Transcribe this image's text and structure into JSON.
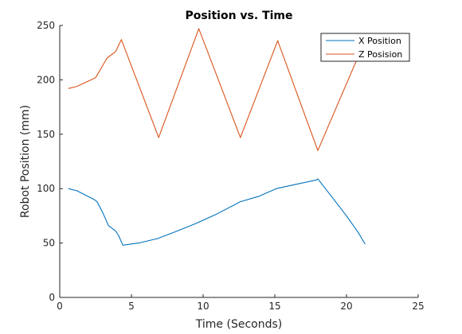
{
  "chart_data": {
    "type": "line",
    "title": "Position vs. Time",
    "xlabel": "Time (Seconds)",
    "ylabel": "Robot Position (mm)",
    "xlim": [
      0,
      25
    ],
    "ylim": [
      0,
      250
    ],
    "xticks": [
      0,
      5,
      10,
      15,
      20,
      25
    ],
    "yticks": [
      0,
      50,
      100,
      150,
      200,
      250
    ],
    "grid": false,
    "legend_position": "top-right",
    "series": [
      {
        "name": "X Position",
        "color": "#0072BD",
        "x": [
          0.6,
          1.2,
          2.4,
          2.6,
          3.0,
          3.4,
          3.9,
          4.1,
          4.4,
          5.5,
          6.8,
          8.0,
          9.5,
          11.0,
          12.6,
          13.9,
          15.1,
          16.5,
          17.9,
          18.0,
          19.0,
          20.0,
          20.8,
          21.3
        ],
        "y": [
          100,
          98,
          90,
          88,
          78,
          66,
          61,
          57,
          48,
          50,
          54,
          60,
          68,
          77,
          88,
          93,
          100,
          104,
          108,
          109,
          92,
          75,
          60,
          49
        ]
      },
      {
        "name": "Z Posision",
        "color": "#D95319",
        "x": [
          0.6,
          1.2,
          2.5,
          3.3,
          3.9,
          4.3,
          6.9,
          9.7,
          12.6,
          15.2,
          18.0,
          20.7
        ],
        "y": [
          192,
          194,
          202,
          220,
          226,
          237,
          147,
          247,
          147,
          236,
          135,
          218
        ]
      }
    ]
  }
}
